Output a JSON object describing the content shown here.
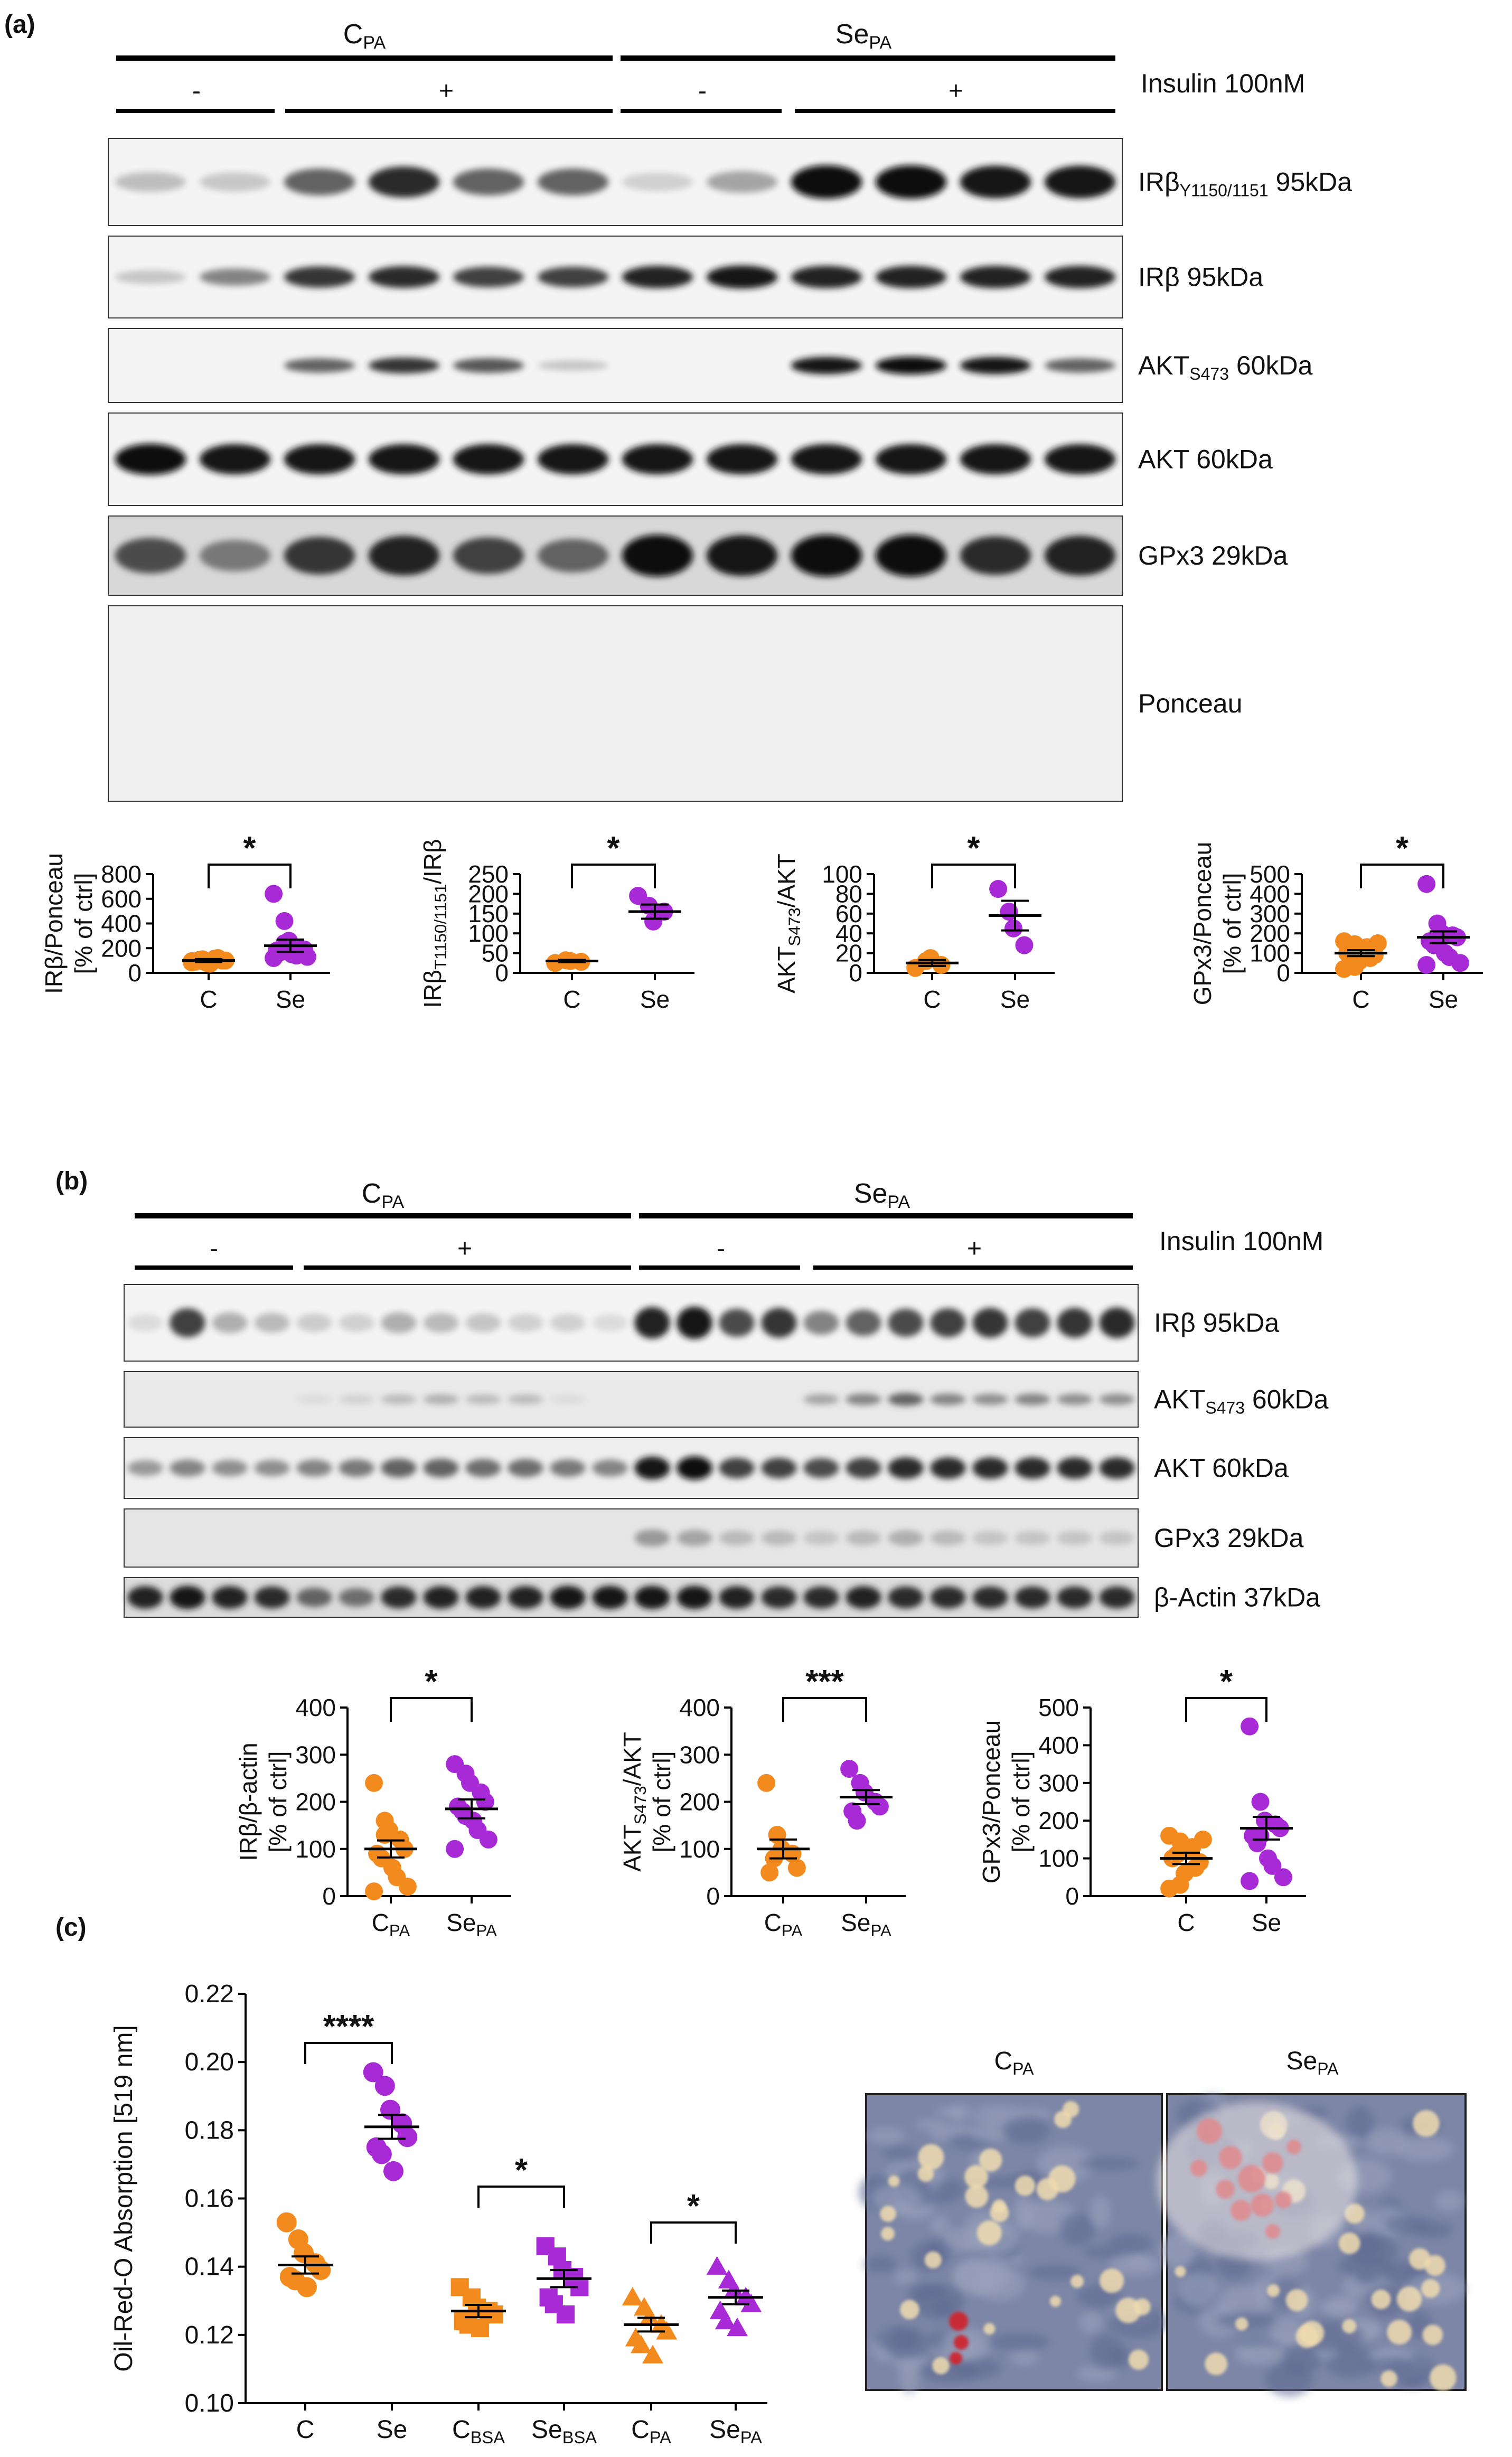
{
  "panels": {
    "a": "(a)",
    "b": "(b)",
    "c": "(c)"
  },
  "groups": {
    "cpa": "C",
    "sepa": "Se",
    "pa_sub": "PA"
  },
  "insulin": {
    "label": "Insulin 100nM",
    "minus": "-",
    "plus": "+"
  },
  "blots_a": [
    {
      "pre": "IRβ",
      "sub": "Y1150/1151",
      "post": " 95kDa"
    },
    {
      "pre": "IRβ 95kDa",
      "sub": "",
      "post": ""
    },
    {
      "pre": "AKT",
      "sub": "S473",
      "post": " 60kDa"
    },
    {
      "pre": "AKT 60kDa",
      "sub": "",
      "post": ""
    },
    {
      "pre": "GPx3 29kDa",
      "sub": "",
      "post": ""
    },
    {
      "pre": "Ponceau",
      "sub": "",
      "post": ""
    }
  ],
  "blots_b": [
    {
      "pre": "IRβ 95kDa",
      "sub": "",
      "post": ""
    },
    {
      "pre": "AKT",
      "sub": "S473",
      "post": " 60kDa"
    },
    {
      "pre": "AKT 60kDa",
      "sub": "",
      "post": ""
    },
    {
      "pre": "GPx3 29kDa",
      "sub": "",
      "post": ""
    },
    {
      "pre": "β-Actin 37kDa",
      "sub": "",
      "post": ""
    }
  ],
  "sig": {
    "one": "*",
    "three": "***",
    "four": "****"
  },
  "colors": {
    "control": "#F28A1E",
    "selenium": "#A829D6",
    "axis": "#000000"
  },
  "chart_data": [
    {
      "id": "a1",
      "type": "scatter",
      "ylabel": [
        "IRβ/Ponceau",
        "[% of ctrl]"
      ],
      "ylim": [
        0,
        800
      ],
      "yticks": [
        "0",
        "200",
        "400",
        "600",
        "800"
      ],
      "categories": [
        "C",
        "Se"
      ],
      "groups": [
        {
          "label": "C",
          "mean": 100,
          "sem": 12,
          "points": [
            95,
            110,
            80,
            120,
            100,
            90,
            105,
            75,
            115,
            100,
            85,
            95
          ]
        },
        {
          "label": "Se",
          "mean": 220,
          "sem": 50,
          "points": [
            640,
            420,
            260,
            200,
            190,
            180,
            170,
            150,
            140,
            130,
            120,
            240
          ]
        }
      ],
      "significance": "*"
    },
    {
      "id": "a2",
      "type": "scatter",
      "ylabel": [
        "IRβ",
        "T1150/1151",
        "/IRβ"
      ],
      "ylim": [
        0,
        250
      ],
      "yticks": [
        "0",
        "50",
        "100",
        "150",
        "200",
        "250"
      ],
      "categories": [
        "C",
        "Se"
      ],
      "groups": [
        {
          "label": "C",
          "mean": 30,
          "sem": 3,
          "points": [
            25,
            32,
            30,
            28
          ]
        },
        {
          "label": "Se",
          "mean": 155,
          "sem": 18,
          "points": [
            195,
            170,
            130,
            155
          ]
        }
      ],
      "significance": "*"
    },
    {
      "id": "a3",
      "type": "scatter",
      "ylabel": [
        "AKT",
        "S473",
        "/AKT"
      ],
      "ylim": [
        0,
        100
      ],
      "yticks": [
        "0",
        "20",
        "40",
        "60",
        "80",
        "100"
      ],
      "categories": [
        "C",
        "Se"
      ],
      "groups": [
        {
          "label": "C",
          "mean": 10,
          "sem": 3,
          "points": [
            5,
            12,
            15,
            8
          ]
        },
        {
          "label": "Se",
          "mean": 58,
          "sem": 15,
          "points": [
            85,
            62,
            45,
            28
          ]
        }
      ],
      "significance": "*"
    },
    {
      "id": "a4",
      "type": "scatter",
      "ylabel": [
        "GPx3/Ponceau",
        "[% of ctrl]"
      ],
      "ylim": [
        0,
        500
      ],
      "yticks": [
        "0",
        "100",
        "200",
        "300",
        "400",
        "500"
      ],
      "categories": [
        "C",
        "Se"
      ],
      "groups": [
        {
          "label": "C",
          "mean": 100,
          "sem": 15,
          "points": [
            20,
            30,
            60,
            75,
            90,
            100,
            110,
            120,
            130,
            150,
            160,
            145
          ]
        },
        {
          "label": "Se",
          "mean": 180,
          "sem": 30,
          "points": [
            450,
            250,
            200,
            190,
            180,
            160,
            140,
            100,
            80,
            50,
            40,
            160
          ]
        }
      ],
      "significance": "*"
    },
    {
      "id": "b1",
      "type": "scatter",
      "ylabel": [
        "IRβ/β-actin",
        "[% of ctrl]"
      ],
      "ylim": [
        0,
        400
      ],
      "yticks": [
        "0",
        "100",
        "200",
        "300",
        "400"
      ],
      "categories": [
        "C_PA",
        "Se_PA"
      ],
      "groups": [
        {
          "label": "C_PA",
          "mean": 100,
          "sem": 18,
          "points": [
            240,
            160,
            140,
            120,
            100,
            90,
            80,
            60,
            40,
            20,
            10,
            130
          ]
        },
        {
          "label": "Se_PA",
          "mean": 185,
          "sem": 20,
          "points": [
            280,
            260,
            240,
            220,
            200,
            190,
            180,
            160,
            140,
            120,
            100,
            170
          ]
        }
      ],
      "significance": "*"
    },
    {
      "id": "b2",
      "type": "scatter",
      "ylabel": [
        "AKT",
        "S473",
        "/AKT",
        "[% of ctrl]"
      ],
      "ylim": [
        0,
        400
      ],
      "yticks": [
        "0",
        "100",
        "200",
        "300",
        "400"
      ],
      "categories": [
        "C_PA",
        "Se_PA"
      ],
      "groups": [
        {
          "label": "C_PA",
          "mean": 100,
          "sem": 20,
          "points": [
            240,
            130,
            100,
            90,
            60,
            50,
            80
          ]
        },
        {
          "label": "Se_PA",
          "mean": 210,
          "sem": 15,
          "points": [
            270,
            240,
            220,
            200,
            190,
            180,
            160
          ]
        }
      ],
      "significance": "***"
    },
    {
      "id": "b3",
      "type": "scatter",
      "ylabel": [
        "GPx3/Ponceau",
        "[% of ctrl]"
      ],
      "ylim": [
        0,
        500
      ],
      "yticks": [
        "0",
        "100",
        "200",
        "300",
        "400",
        "500"
      ],
      "categories": [
        "C",
        "Se"
      ],
      "groups": [
        {
          "label": "C",
          "mean": 100,
          "sem": 15,
          "points": [
            20,
            30,
            60,
            75,
            90,
            100,
            110,
            120,
            130,
            150,
            160,
            145
          ]
        },
        {
          "label": "Se",
          "mean": 180,
          "sem": 30,
          "points": [
            450,
            250,
            200,
            190,
            180,
            160,
            140,
            100,
            80,
            50,
            40,
            160
          ]
        }
      ],
      "significance": "*"
    },
    {
      "id": "c1",
      "type": "scatter",
      "ylabel": [
        "Oil-Red-O Absorption [519 nm]"
      ],
      "ylim": [
        0.1,
        0.22
      ],
      "yticks": [
        "0.10",
        "0.12",
        "0.14",
        "0.16",
        "0.18",
        "0.20",
        "0.22"
      ],
      "categories": [
        "C",
        "Se",
        "C_BSA",
        "Se_BSA",
        "C_PA",
        "Se_PA"
      ],
      "groups": [
        {
          "label": "C",
          "marker": "circle",
          "mean": 0.1405,
          "sem": 0.0025,
          "points": [
            0.153,
            0.148,
            0.144,
            0.141,
            0.139,
            0.137,
            0.136,
            0.134
          ]
        },
        {
          "label": "Se",
          "marker": "circle",
          "mean": 0.181,
          "sem": 0.0035,
          "points": [
            0.197,
            0.193,
            0.186,
            0.182,
            0.178,
            0.175,
            0.173,
            0.168
          ]
        },
        {
          "label": "C_BSA",
          "marker": "square",
          "mean": 0.127,
          "sem": 0.0018,
          "points": [
            0.134,
            0.131,
            0.128,
            0.127,
            0.126,
            0.124,
            0.123,
            0.122
          ]
        },
        {
          "label": "Se_BSA",
          "marker": "square",
          "mean": 0.1365,
          "sem": 0.0025,
          "points": [
            0.146,
            0.143,
            0.139,
            0.137,
            0.134,
            0.131,
            0.129,
            0.126
          ]
        },
        {
          "label": "C_PA",
          "marker": "triangle",
          "mean": 0.123,
          "sem": 0.002,
          "points": [
            0.131,
            0.128,
            0.125,
            0.123,
            0.121,
            0.119,
            0.117,
            0.114
          ]
        },
        {
          "label": "Se_PA",
          "marker": "triangle",
          "mean": 0.131,
          "sem": 0.002,
          "points": [
            0.14,
            0.136,
            0.133,
            0.131,
            0.129,
            0.127,
            0.124,
            0.122
          ]
        }
      ],
      "significance": [
        "****",
        "*",
        "*"
      ]
    }
  ],
  "micro": {
    "left_label": "C",
    "right_label": "Se",
    "sub": "PA"
  }
}
